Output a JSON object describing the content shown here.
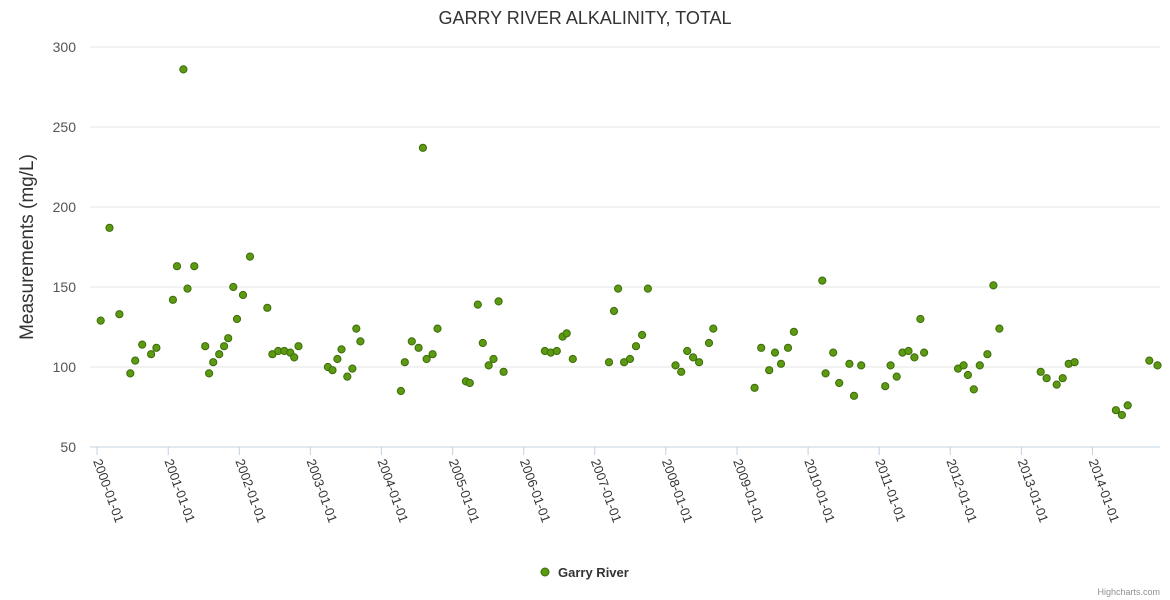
{
  "chart_data": {
    "type": "scatter",
    "title": "GARRY RIVER ALKALINITY, TOTAL",
    "ylabel": "Measurements (mg/L)",
    "xlabel": "",
    "ylim": [
      50,
      300
    ],
    "yticks": [
      "50",
      "100",
      "150",
      "200",
      "250",
      "300"
    ],
    "xticks": [
      "2000-01-01",
      "2001-01-01",
      "2002-01-01",
      "2003-01-01",
      "2004-01-01",
      "2005-01-01",
      "2006-01-01",
      "2007-01-01",
      "2008-01-01",
      "2009-01-01",
      "2010-01-01",
      "2011-01-01",
      "2012-01-01",
      "2013-01-01",
      "2014-01-01"
    ],
    "grid": "horizontal",
    "legend_position": "bottom-center",
    "series": [
      {
        "name": "Garry River",
        "color": "#5b9a11",
        "points": [
          [
            "2000-01-20",
            129
          ],
          [
            "2000-03-05",
            187
          ],
          [
            "2000-04-25",
            133
          ],
          [
            "2000-06-20",
            96
          ],
          [
            "2000-07-15",
            104
          ],
          [
            "2000-08-20",
            114
          ],
          [
            "2000-10-05",
            108
          ],
          [
            "2000-11-01",
            112
          ],
          [
            "2001-01-25",
            142
          ],
          [
            "2001-02-15",
            163
          ],
          [
            "2001-03-20",
            286
          ],
          [
            "2001-04-10",
            149
          ],
          [
            "2001-05-15",
            163
          ],
          [
            "2001-07-10",
            113
          ],
          [
            "2001-07-30",
            96
          ],
          [
            "2001-08-20",
            103
          ],
          [
            "2001-09-20",
            108
          ],
          [
            "2001-10-15",
            113
          ],
          [
            "2001-11-05",
            118
          ],
          [
            "2001-12-01",
            150
          ],
          [
            "2001-12-20",
            130
          ],
          [
            "2002-01-20",
            145
          ],
          [
            "2002-02-25",
            169
          ],
          [
            "2002-05-25",
            137
          ],
          [
            "2002-06-20",
            108
          ],
          [
            "2002-07-20",
            110
          ],
          [
            "2002-08-20",
            110
          ],
          [
            "2002-09-20",
            109
          ],
          [
            "2002-10-10",
            106
          ],
          [
            "2002-11-01",
            113
          ],
          [
            "2003-04-01",
            100
          ],
          [
            "2003-04-25",
            98
          ],
          [
            "2003-05-20",
            105
          ],
          [
            "2003-06-10",
            111
          ],
          [
            "2003-07-10",
            94
          ],
          [
            "2003-08-05",
            99
          ],
          [
            "2003-08-25",
            124
          ],
          [
            "2003-09-15",
            116
          ],
          [
            "2004-04-10",
            85
          ],
          [
            "2004-04-30",
            103
          ],
          [
            "2004-06-05",
            116
          ],
          [
            "2004-07-10",
            112
          ],
          [
            "2004-08-01",
            237
          ],
          [
            "2004-08-20",
            105
          ],
          [
            "2004-09-20",
            108
          ],
          [
            "2004-10-15",
            124
          ],
          [
            "2005-03-10",
            91
          ],
          [
            "2005-03-30",
            90
          ],
          [
            "2005-05-10",
            139
          ],
          [
            "2005-06-05",
            115
          ],
          [
            "2005-07-05",
            101
          ],
          [
            "2005-07-30",
            105
          ],
          [
            "2005-08-25",
            141
          ],
          [
            "2005-09-20",
            97
          ],
          [
            "2006-04-20",
            110
          ],
          [
            "2006-05-20",
            109
          ],
          [
            "2006-06-20",
            110
          ],
          [
            "2006-07-20",
            119
          ],
          [
            "2006-08-10",
            121
          ],
          [
            "2006-09-10",
            105
          ],
          [
            "2007-03-15",
            103
          ],
          [
            "2007-04-10",
            135
          ],
          [
            "2007-05-01",
            149
          ],
          [
            "2007-06-01",
            103
          ],
          [
            "2007-07-01",
            105
          ],
          [
            "2007-08-01",
            113
          ],
          [
            "2007-09-01",
            120
          ],
          [
            "2007-10-01",
            149
          ],
          [
            "2008-02-20",
            101
          ],
          [
            "2008-03-20",
            97
          ],
          [
            "2008-04-20",
            110
          ],
          [
            "2008-05-20",
            106
          ],
          [
            "2008-06-20",
            103
          ],
          [
            "2008-08-10",
            115
          ],
          [
            "2008-09-01",
            124
          ],
          [
            "2009-04-01",
            87
          ],
          [
            "2009-05-05",
            112
          ],
          [
            "2009-06-15",
            98
          ],
          [
            "2009-07-15",
            109
          ],
          [
            "2009-08-15",
            102
          ],
          [
            "2009-09-20",
            112
          ],
          [
            "2009-10-20",
            122
          ],
          [
            "2010-03-15",
            154
          ],
          [
            "2010-04-01",
            96
          ],
          [
            "2010-05-10",
            109
          ],
          [
            "2010-06-10",
            90
          ],
          [
            "2010-08-01",
            102
          ],
          [
            "2010-08-25",
            82
          ],
          [
            "2010-10-01",
            101
          ],
          [
            "2011-02-01",
            88
          ],
          [
            "2011-03-01",
            101
          ],
          [
            "2011-04-01",
            94
          ],
          [
            "2011-05-01",
            109
          ],
          [
            "2011-06-01",
            110
          ],
          [
            "2011-07-01",
            106
          ],
          [
            "2011-08-01",
            130
          ],
          [
            "2011-08-20",
            109
          ],
          [
            "2012-02-10",
            99
          ],
          [
            "2012-03-10",
            101
          ],
          [
            "2012-04-01",
            95
          ],
          [
            "2012-05-01",
            86
          ],
          [
            "2012-06-01",
            101
          ],
          [
            "2012-07-10",
            108
          ],
          [
            "2012-08-10",
            151
          ],
          [
            "2012-09-10",
            124
          ],
          [
            "2013-04-10",
            97
          ],
          [
            "2013-05-10",
            93
          ],
          [
            "2013-07-01",
            89
          ],
          [
            "2013-08-01",
            93
          ],
          [
            "2013-09-01",
            102
          ],
          [
            "2013-10-01",
            103
          ],
          [
            "2014-05-01",
            73
          ],
          [
            "2014-06-01",
            70
          ],
          [
            "2014-07-01",
            76
          ],
          [
            "2014-10-20",
            104
          ],
          [
            "2014-12-01",
            101
          ]
        ]
      }
    ]
  },
  "credit": "Highcharts.com"
}
